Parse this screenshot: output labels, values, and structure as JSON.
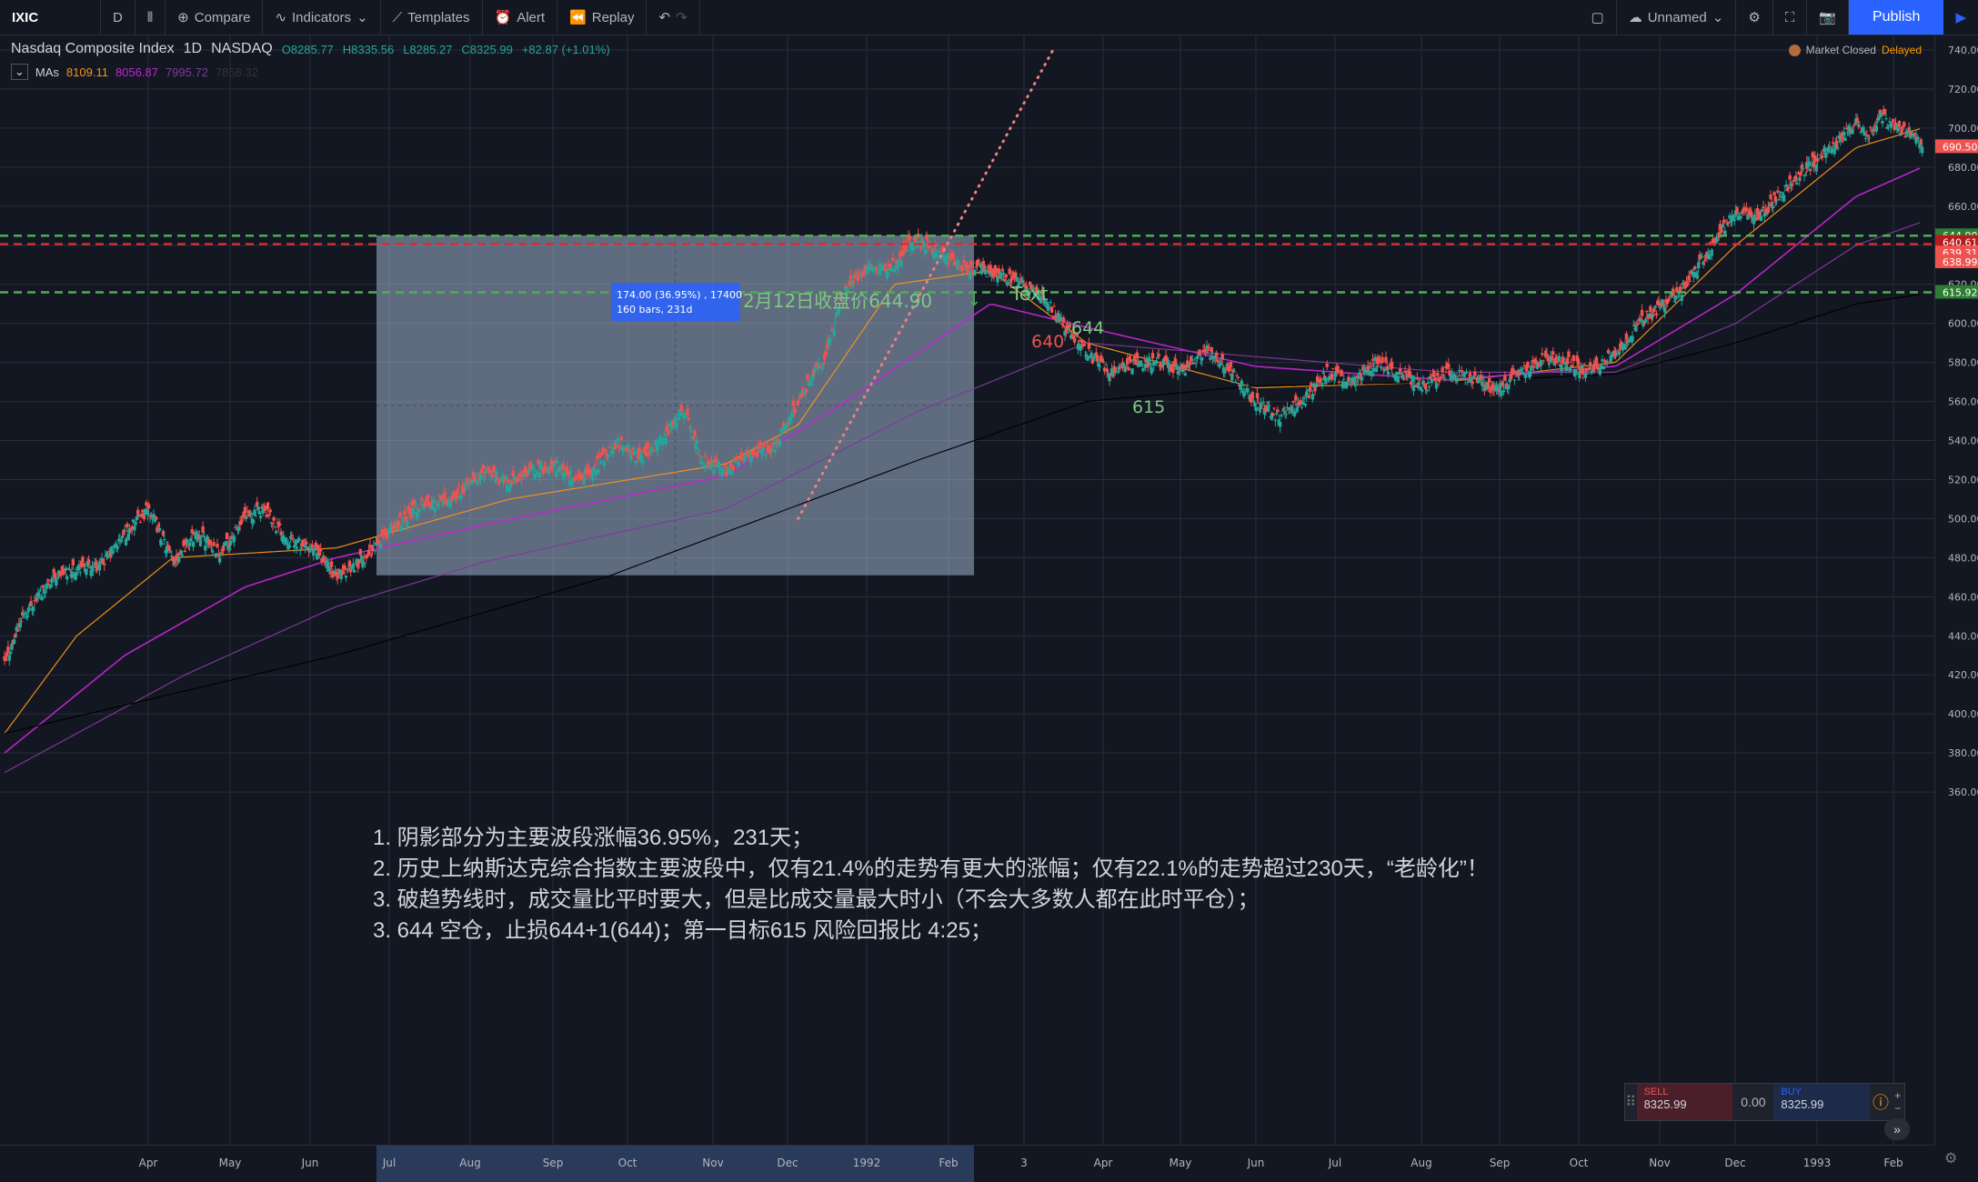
{
  "toolbar": {
    "symbol": "IXIC",
    "interval": "D",
    "compare": "Compare",
    "indicators": "Indicators",
    "templates": "Templates",
    "alert": "Alert",
    "replay": "Replay",
    "layout_name": "Unnamed",
    "publish": "Publish"
  },
  "legend": {
    "title": "Nasdaq Composite Index",
    "interval": "1D",
    "exchange": "NASDAQ",
    "open": "O8285.77",
    "high": "H8335.56",
    "low": "L8285.27",
    "close": "C8325.99",
    "change": "+82.87 (+1.01%)",
    "ma_label": "MAs",
    "ma1": "8109.11",
    "ma2": "8056.87",
    "ma3": "7995.72",
    "ma4": "7858.32"
  },
  "status": {
    "market": "Market Closed",
    "delay": "Delayed"
  },
  "colors": {
    "bg": "#131722",
    "up": "#26a69a",
    "down": "#ef5350",
    "ma_fast": "#f7931a",
    "ma_mid": "#c026d3",
    "ma_slow": "#7e3b99",
    "ma_long": "#000000",
    "accent": "#2962ff",
    "green_line": "#4caf50",
    "red_line": "#d32f2f"
  },
  "price_axis": {
    "labels": [
      "740.00",
      "720.00",
      "700.00",
      "680.00",
      "660.00",
      "640.00",
      "620.00",
      "600.00",
      "580.00",
      "560.00",
      "540.00",
      "520.00",
      "500.00",
      "480.00",
      "460.00",
      "440.00",
      "420.00",
      "400.00",
      "380.00",
      "360.00"
    ]
  },
  "price_tags": [
    {
      "value": 690.5,
      "text": "690.50",
      "color": "#ef5350"
    },
    {
      "value": 644.9,
      "text": "644.90",
      "color": "#2e7d32"
    },
    {
      "value": 640.61,
      "text": "640.61",
      "color": "#b71c1c"
    },
    {
      "value": 639.31,
      "text": "639.31",
      "color": "#ef5350"
    },
    {
      "value": 638.99,
      "text": "638.99",
      "color": "#ef5350"
    },
    {
      "value": 615.92,
      "text": "615.92",
      "color": "#2e7d32"
    }
  ],
  "time_axis": {
    "labels": [
      "Apr",
      "May",
      "Jun",
      "Jul",
      "Aug",
      "Sep",
      "Oct",
      "Nov",
      "Dec",
      "1992",
      "Feb",
      "3",
      "Apr",
      "May",
      "Jun",
      "Jul",
      "Aug",
      "Sep",
      "Oct",
      "Nov",
      "Dec",
      "1993",
      "Feb"
    ]
  },
  "annotations": {
    "measure_line1": "174.00 (36.95%) , 17400",
    "measure_line2": "160 bars, 231d",
    "close_note": "2月12日收盘价644.90",
    "text_label": "Text",
    "line_644": "644",
    "line_640": "640",
    "line_615": "615"
  },
  "notes": [
    "1. 阴影部分为主要波段涨幅36.95%，231天；",
    "2. 历史上纳斯达克综合指数主要波段中，仅有21.4%的走势有更大的涨幅；仅有22.1%的走势超过230天，“老龄化”！",
    "3. 破趋势线时，成交量比平时要大，但是比成交量最大时小（不会大多数人都在此时平仓）；",
    "3. 644 空仓，止损644+1(644)；第一目标615 风险回报比 4:25；"
  ],
  "trade_ticket": {
    "sell_label": "SELL",
    "sell_price": "8325.99",
    "spread": "0.00",
    "buy_label": "BUY",
    "buy_price": "8325.99"
  },
  "chart_data": {
    "type": "candlestick",
    "ylim": [
      350,
      750
    ],
    "measure_box": {
      "start_price": 471,
      "end_price": 645
    },
    "levels": [
      644.9,
      640.61,
      615.92
    ],
    "close_anchors": [
      [
        0,
        425
      ],
      [
        15,
        450
      ],
      [
        40,
        470
      ],
      [
        60,
        475
      ],
      [
        80,
        476
      ],
      [
        100,
        492
      ],
      [
        120,
        505
      ],
      [
        140,
        478
      ],
      [
        160,
        493
      ],
      [
        180,
        482
      ],
      [
        200,
        500
      ],
      [
        215,
        505
      ],
      [
        235,
        490
      ],
      [
        262,
        482
      ],
      [
        276,
        470
      ],
      [
        300,
        480
      ],
      [
        320,
        494
      ],
      [
        345,
        507
      ],
      [
        370,
        510
      ],
      [
        400,
        524
      ],
      [
        420,
        518
      ],
      [
        440,
        525
      ],
      [
        460,
        527
      ],
      [
        475,
        520
      ],
      [
        490,
        525
      ],
      [
        510,
        540
      ],
      [
        530,
        530
      ],
      [
        545,
        540
      ],
      [
        565,
        556
      ],
      [
        580,
        530
      ],
      [
        600,
        525
      ],
      [
        620,
        533
      ],
      [
        640,
        536
      ],
      [
        660,
        560
      ],
      [
        680,
        580
      ],
      [
        700,
        620
      ],
      [
        720,
        628
      ],
      [
        740,
        630
      ],
      [
        755,
        642
      ],
      [
        770,
        640
      ],
      [
        790,
        630
      ],
      [
        810,
        628
      ],
      [
        830,
        625
      ],
      [
        850,
        619
      ],
      [
        870,
        608
      ],
      [
        880,
        600
      ],
      [
        900,
        585
      ],
      [
        920,
        575
      ],
      [
        940,
        580
      ],
      [
        960,
        580
      ],
      [
        980,
        576
      ],
      [
        1000,
        586
      ],
      [
        1020,
        575
      ],
      [
        1040,
        560
      ],
      [
        1060,
        552
      ],
      [
        1080,
        560
      ],
      [
        1100,
        575
      ],
      [
        1120,
        570
      ],
      [
        1140,
        580
      ],
      [
        1160,
        575
      ],
      [
        1180,
        568
      ],
      [
        1200,
        575
      ],
      [
        1220,
        572
      ],
      [
        1240,
        565
      ],
      [
        1260,
        575
      ],
      [
        1280,
        582
      ],
      [
        1300,
        580
      ],
      [
        1320,
        575
      ],
      [
        1340,
        585
      ],
      [
        1360,
        600
      ],
      [
        1380,
        610
      ],
      [
        1400,
        620
      ],
      [
        1420,
        640
      ],
      [
        1440,
        657
      ],
      [
        1460,
        655
      ],
      [
        1480,
        668
      ],
      [
        1500,
        680
      ],
      [
        1520,
        690
      ],
      [
        1540,
        702
      ],
      [
        1550,
        696
      ],
      [
        1560,
        706
      ],
      [
        1575,
        700
      ],
      [
        1590,
        695
      ],
      [
        1595,
        691
      ]
    ],
    "series": [
      {
        "name": "MA fast",
        "anchors": [
          [
            0,
            390
          ],
          [
            60,
            440
          ],
          [
            140,
            480
          ],
          [
            276,
            485
          ],
          [
            420,
            510
          ],
          [
            600,
            528
          ],
          [
            660,
            548
          ],
          [
            740,
            620
          ],
          [
            820,
            627
          ],
          [
            900,
            590
          ],
          [
            1040,
            567
          ],
          [
            1200,
            570
          ],
          [
            1340,
            580
          ],
          [
            1440,
            640
          ],
          [
            1540,
            690
          ],
          [
            1595,
            700
          ]
        ]
      },
      {
        "name": "MA mid",
        "anchors": [
          [
            0,
            380
          ],
          [
            100,
            430
          ],
          [
            200,
            465
          ],
          [
            276,
            480
          ],
          [
            400,
            497
          ],
          [
            600,
            522
          ],
          [
            700,
            560
          ],
          [
            820,
            610
          ],
          [
            900,
            598
          ],
          [
            1040,
            578
          ],
          [
            1200,
            571
          ],
          [
            1340,
            578
          ],
          [
            1440,
            615
          ],
          [
            1540,
            665
          ],
          [
            1595,
            680
          ]
        ]
      },
      {
        "name": "MA slow",
        "anchors": [
          [
            0,
            370
          ],
          [
            150,
            420
          ],
          [
            276,
            455
          ],
          [
            400,
            478
          ],
          [
            600,
            505
          ],
          [
            760,
            555
          ],
          [
            900,
            590
          ],
          [
            1040,
            583
          ],
          [
            1200,
            575
          ],
          [
            1340,
            575
          ],
          [
            1440,
            600
          ],
          [
            1540,
            640
          ],
          [
            1595,
            652
          ]
        ]
      },
      {
        "name": "MA long",
        "anchors": [
          [
            0,
            390
          ],
          [
            276,
            430
          ],
          [
            500,
            470
          ],
          [
            760,
            530
          ],
          [
            900,
            560
          ],
          [
            1040,
            568
          ],
          [
            1200,
            570
          ],
          [
            1340,
            574
          ],
          [
            1440,
            590
          ],
          [
            1540,
            610
          ],
          [
            1595,
            615
          ]
        ]
      }
    ],
    "trendline": {
      "start": [
        660,
        500
      ],
      "end": [
        872,
        740
      ]
    }
  }
}
